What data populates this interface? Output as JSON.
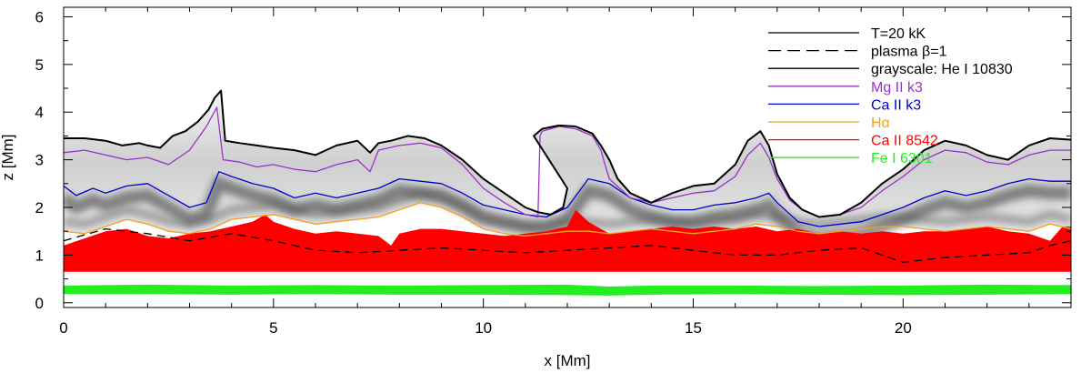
{
  "chart_data": {
    "type": "line",
    "xlabel": "x [Mm]",
    "ylabel": "z [Mm]",
    "xlim": [
      0,
      24
    ],
    "ylim": [
      -0.1,
      6.2
    ],
    "xticks": [
      0,
      5,
      10,
      15,
      20
    ],
    "yticks": [
      0,
      1,
      2,
      3,
      4,
      5,
      6
    ],
    "grid": false,
    "legend_position": "top-right",
    "background": "grayscale: He I 10830",
    "series": [
      {
        "name": "T=20 kK",
        "style": "solid",
        "color": "#000000",
        "x": [
          0,
          0.5,
          1,
          1.4,
          1.8,
          2.0,
          2.3,
          2.6,
          2.9,
          3.2,
          3.45,
          3.6,
          3.75,
          3.85,
          4.2,
          4.6,
          5.0,
          5.5,
          6.0,
          6.5,
          7.0,
          7.3,
          7.5,
          7.8,
          8.2,
          8.6,
          9.0,
          9.5,
          10.0,
          10.5,
          11.0,
          11.3,
          11.6,
          11.9,
          12.0,
          11.2,
          11.4,
          11.8,
          12.2,
          12.6,
          12.8,
          13.0,
          13.2,
          13.5,
          14.0,
          14.5,
          15.0,
          15.5,
          16.0,
          16.3,
          16.6,
          16.8,
          17.0,
          17.3,
          17.6,
          18.0,
          18.5,
          19.0,
          19.5,
          20.0,
          20.5,
          21.0,
          21.5,
          22.0,
          22.5,
          23.0,
          23.5,
          24.0
        ],
        "y": [
          3.45,
          3.45,
          3.4,
          3.3,
          3.35,
          3.3,
          3.25,
          3.5,
          3.6,
          3.8,
          4.05,
          4.3,
          4.45,
          3.4,
          3.35,
          3.3,
          3.25,
          3.2,
          3.1,
          3.3,
          3.4,
          3.15,
          3.35,
          3.4,
          3.5,
          3.45,
          3.3,
          3.0,
          2.6,
          2.3,
          2.0,
          1.9,
          1.85,
          2.0,
          2.4,
          3.5,
          3.65,
          3.72,
          3.7,
          3.55,
          3.3,
          3.0,
          2.6,
          2.3,
          2.1,
          2.3,
          2.45,
          2.5,
          2.9,
          3.4,
          3.6,
          3.3,
          2.7,
          2.2,
          1.95,
          1.8,
          1.85,
          2.1,
          2.5,
          2.8,
          3.2,
          3.4,
          3.3,
          3.1,
          3.0,
          3.3,
          3.45,
          3.42
        ]
      },
      {
        "name": "plasma β=1",
        "style": "dashed",
        "color": "#000000",
        "x": [
          0,
          1,
          2,
          3,
          4,
          5,
          6,
          7,
          8,
          9,
          10,
          11,
          12,
          13,
          14,
          15,
          16,
          17,
          18,
          19,
          20,
          21,
          22,
          23,
          23.5,
          24
        ],
        "y": [
          1.3,
          1.55,
          1.45,
          1.3,
          1.45,
          1.3,
          1.1,
          1.05,
          1.1,
          1.15,
          1.1,
          1.05,
          1.1,
          1.15,
          1.2,
          1.1,
          1.0,
          1.0,
          1.1,
          1.15,
          0.85,
          0.95,
          1.0,
          1.05,
          1.2,
          1.3
        ]
      },
      {
        "name": "Mg II k3",
        "style": "solid",
        "color": "#9932cc",
        "x": [
          0,
          0.5,
          1,
          1.5,
          2.0,
          2.5,
          3.0,
          3.4,
          3.65,
          3.8,
          4.2,
          4.6,
          5.0,
          5.5,
          6.0,
          6.5,
          7.0,
          7.3,
          7.5,
          8.0,
          8.5,
          9.0,
          9.5,
          10.0,
          10.5,
          11.0,
          11.3,
          11.35,
          11.4,
          11.8,
          12.2,
          12.6,
          12.8,
          12.9,
          13.0,
          13.5,
          14.0,
          14.5,
          15.0,
          15.5,
          16.0,
          16.3,
          16.6,
          16.8,
          17.0,
          17.3,
          17.6,
          18.0,
          18.5,
          19.0,
          19.5,
          20.0,
          20.5,
          21.0,
          21.5,
          22.0,
          22.5,
          23.0,
          23.5,
          24.0
        ],
        "y": [
          3.15,
          3.2,
          3.1,
          3.0,
          3.05,
          2.9,
          3.2,
          3.7,
          4.1,
          3.0,
          2.95,
          2.85,
          2.9,
          2.8,
          2.75,
          2.9,
          3.0,
          2.75,
          3.2,
          3.3,
          3.35,
          3.25,
          2.9,
          2.4,
          2.1,
          1.85,
          1.8,
          3.5,
          3.6,
          3.7,
          3.65,
          3.5,
          3.2,
          2.9,
          2.6,
          2.2,
          2.1,
          2.2,
          2.3,
          2.35,
          2.65,
          3.1,
          3.35,
          3.05,
          2.6,
          2.15,
          1.95,
          1.8,
          1.85,
          2.0,
          2.35,
          2.65,
          3.0,
          3.2,
          3.15,
          2.95,
          2.9,
          3.1,
          3.2,
          3.2
        ]
      },
      {
        "name": "Ca II k3",
        "style": "solid",
        "color": "#0000cd",
        "x": [
          0,
          0.3,
          0.7,
          1.0,
          1.5,
          2.0,
          2.5,
          3.0,
          3.4,
          3.7,
          4.0,
          4.5,
          5.0,
          5.5,
          6.0,
          6.5,
          7.0,
          7.5,
          8.0,
          8.5,
          9.0,
          9.5,
          10.0,
          10.5,
          11.0,
          11.5,
          12.0,
          12.5,
          13.0,
          13.5,
          14.0,
          14.5,
          15.0,
          15.5,
          16.0,
          16.5,
          16.8,
          17.0,
          17.5,
          18.0,
          18.5,
          19.0,
          19.5,
          20.0,
          20.5,
          21.0,
          21.5,
          22.0,
          22.5,
          23.0,
          23.5,
          24.0
        ],
        "y": [
          2.45,
          2.25,
          2.4,
          2.3,
          2.45,
          2.5,
          2.25,
          2.0,
          2.1,
          2.75,
          2.65,
          2.5,
          2.4,
          2.2,
          2.3,
          2.2,
          2.3,
          2.4,
          2.6,
          2.55,
          2.5,
          2.3,
          2.05,
          1.95,
          1.85,
          1.8,
          2.0,
          2.6,
          2.5,
          2.2,
          2.05,
          1.95,
          1.95,
          2.05,
          2.1,
          2.2,
          2.3,
          2.1,
          1.7,
          1.6,
          1.65,
          1.7,
          1.85,
          2.0,
          2.2,
          2.35,
          2.25,
          2.35,
          2.5,
          2.6,
          2.55,
          2.55
        ]
      },
      {
        "name": "Hα",
        "style": "solid",
        "color": "#f4a020",
        "x": [
          0,
          0.5,
          1.0,
          1.5,
          2.0,
          2.5,
          3.0,
          3.5,
          4.0,
          4.5,
          5.0,
          5.5,
          6.0,
          6.5,
          7.0,
          7.5,
          8.0,
          8.5,
          9.0,
          9.5,
          10.0,
          10.5,
          11.0,
          11.5,
          12.0,
          12.5,
          13.0,
          13.5,
          14.0,
          14.5,
          15.0,
          15.5,
          16.0,
          16.5,
          17.0,
          17.5,
          18.0,
          18.5,
          19.0,
          19.5,
          20.0,
          20.5,
          21.0,
          21.5,
          22.0,
          22.5,
          23.0,
          23.5,
          24.0
        ],
        "y": [
          1.5,
          1.45,
          1.6,
          1.75,
          1.65,
          1.5,
          1.45,
          1.55,
          1.75,
          1.8,
          1.85,
          1.75,
          1.65,
          1.7,
          1.75,
          1.8,
          1.95,
          2.1,
          2.0,
          1.8,
          1.55,
          1.45,
          1.4,
          1.45,
          1.5,
          1.5,
          1.45,
          1.5,
          1.55,
          1.5,
          1.45,
          1.5,
          1.55,
          1.65,
          1.6,
          1.5,
          1.45,
          1.5,
          1.55,
          1.6,
          1.6,
          1.55,
          1.5,
          1.55,
          1.6,
          1.55,
          1.5,
          1.65,
          1.55
        ]
      }
    ],
    "bands": [
      {
        "name": "Ca II 8542",
        "color": "#ff0000",
        "x": [
          0,
          0.5,
          1.0,
          1.5,
          2.0,
          2.5,
          3.0,
          3.5,
          4.0,
          4.5,
          4.8,
          5.0,
          5.5,
          6.0,
          6.5,
          7.0,
          7.5,
          7.8,
          8.0,
          8.5,
          9.0,
          9.5,
          10.0,
          10.5,
          11.0,
          11.5,
          12.0,
          12.2,
          12.5,
          12.8,
          13.0,
          13.5,
          14.0,
          14.5,
          15.0,
          15.5,
          16.0,
          16.5,
          17.0,
          17.5,
          18.0,
          18.5,
          19.0,
          19.5,
          20.0,
          20.5,
          21.0,
          21.5,
          22.0,
          22.5,
          23.0,
          23.5,
          23.8,
          24.0
        ],
        "y_upper": [
          1.2,
          1.35,
          1.5,
          1.55,
          1.4,
          1.35,
          1.45,
          1.5,
          1.6,
          1.7,
          1.85,
          1.7,
          1.55,
          1.45,
          1.5,
          1.45,
          1.4,
          1.2,
          1.45,
          1.55,
          1.55,
          1.5,
          1.45,
          1.4,
          1.45,
          1.5,
          1.6,
          1.95,
          1.7,
          1.55,
          1.45,
          1.5,
          1.55,
          1.6,
          1.55,
          1.6,
          1.55,
          1.6,
          1.5,
          1.55,
          1.45,
          1.5,
          1.45,
          1.5,
          1.45,
          1.5,
          1.5,
          1.55,
          1.6,
          1.5,
          1.45,
          1.3,
          1.6,
          1.6
        ],
        "y_lower": [
          0.65,
          0.65,
          0.65,
          0.65,
          0.65,
          0.65,
          0.65,
          0.65,
          0.65,
          0.65,
          0.65,
          0.65,
          0.65,
          0.65,
          0.65,
          0.65,
          0.65,
          0.65,
          0.65,
          0.65,
          0.65,
          0.65,
          0.65,
          0.65,
          0.65,
          0.65,
          0.65,
          0.65,
          0.65,
          0.65,
          0.65,
          0.65,
          0.65,
          0.65,
          0.65,
          0.65,
          0.65,
          0.65,
          0.65,
          0.65,
          0.65,
          0.65,
          0.65,
          0.65,
          0.65,
          0.65,
          0.65,
          0.65,
          0.65,
          0.65,
          0.65,
          0.65,
          0.65,
          0.65
        ]
      },
      {
        "name": "Fe I 6301",
        "color": "#22ee22",
        "x": [
          0,
          2,
          4,
          6,
          8,
          10,
          12,
          13,
          14,
          16,
          18,
          20,
          22,
          24
        ],
        "y_upper": [
          0.36,
          0.38,
          0.36,
          0.37,
          0.36,
          0.37,
          0.38,
          0.34,
          0.36,
          0.36,
          0.35,
          0.36,
          0.38,
          0.37
        ],
        "y_lower": [
          0.18,
          0.18,
          0.17,
          0.18,
          0.17,
          0.17,
          0.16,
          0.15,
          0.17,
          0.18,
          0.17,
          0.16,
          0.17,
          0.18
        ]
      }
    ],
    "legend": [
      {
        "label": "T=20 kK",
        "color": "#000000",
        "style": "solid"
      },
      {
        "label": "plasma β=1",
        "color": "#000000",
        "style": "dashed"
      },
      {
        "label": "grayscale: He I 10830",
        "color": "#000000",
        "style": "solid"
      },
      {
        "label": "Mg II k3",
        "color": "#9932cc",
        "style": "solid"
      },
      {
        "label": "Ca II k3",
        "color": "#0000cd",
        "style": "solid"
      },
      {
        "label": "Hα",
        "color": "#f4a020",
        "style": "solid"
      },
      {
        "label": "Ca II 8542",
        "color": "#ff0000",
        "style": "solid"
      },
      {
        "label": "Fe I 6301",
        "color": "#22ee22",
        "style": "solid"
      }
    ]
  }
}
